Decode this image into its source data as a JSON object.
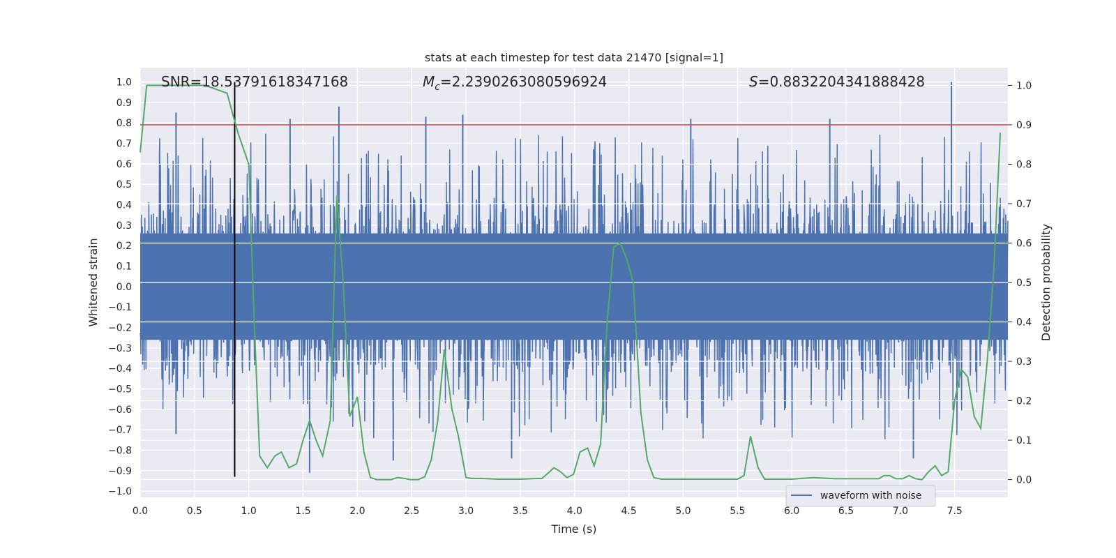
{
  "chart_data": {
    "type": "line",
    "title": "stats at each timestep for test data 21470 [signal=1]",
    "xlabel": "Time (s)",
    "ylabel": "Whitened strain",
    "ylabel_right": "Detection probability",
    "xlim": [
      0.0,
      7.99
    ],
    "ylim": [
      -1.03,
      1.07
    ],
    "ylim_right": [
      -0.045,
      1.045
    ],
    "x_ticks": [
      "0.0",
      "0.5",
      "1.0",
      "1.5",
      "2.0",
      "2.5",
      "3.0",
      "3.5",
      "4.0",
      "4.5",
      "5.0",
      "5.5",
      "6.0",
      "6.5",
      "7.0",
      "7.5"
    ],
    "y_ticks": [
      "1.0",
      "0.9",
      "0.8",
      "0.7",
      "0.6",
      "0.5",
      "0.4",
      "0.3",
      "0.2",
      "0.1",
      "0.0",
      "−0.1",
      "−0.2",
      "−0.3",
      "−0.4",
      "−0.5",
      "−0.6",
      "−0.7",
      "−0.8",
      "−0.9",
      "−1.0"
    ],
    "y_ticks_right": [
      "1.0",
      "0.9",
      "0.8",
      "0.7",
      "0.6",
      "0.5",
      "0.4",
      "0.3",
      "0.2",
      "0.1",
      "0.0"
    ],
    "grid": true,
    "legend": {
      "placement": "lower-right",
      "entries": [
        "waveform with noise"
      ]
    },
    "annotations": {
      "snr": "SNR=18.53791618347168",
      "mc_symbol": "M",
      "mc_subscript": "c",
      "mc_value": "=2.2390263080596924",
      "s_symbol": "S",
      "s_value": "=0.8832204341888428"
    },
    "threshold_probability": 0.9,
    "event_time": 0.87,
    "waveform_envelope": {
      "description_units": "strain",
      "typical_upper": 0.45,
      "typical_lower": -0.45,
      "notable_peaks": [
        {
          "x": 0.33,
          "y": 0.85
        },
        {
          "x": 1.38,
          "y": 0.82
        },
        {
          "x": 1.83,
          "y": 0.88
        },
        {
          "x": 2.63,
          "y": 0.83
        },
        {
          "x": 2.97,
          "y": 0.84
        },
        {
          "x": 5.07,
          "y": 0.82
        },
        {
          "x": 6.35,
          "y": 0.82
        },
        {
          "x": 7.47,
          "y": 1.0
        }
      ],
      "notable_troughs": [
        {
          "x": 0.87,
          "y": -0.92
        },
        {
          "x": 1.56,
          "y": -0.91
        },
        {
          "x": 0.33,
          "y": -0.72
        },
        {
          "x": 3.42,
          "y": -0.84
        },
        {
          "x": 2.33,
          "y": -0.85
        },
        {
          "x": 7.12,
          "y": -0.84
        }
      ]
    },
    "series": [
      {
        "name": "waveform with noise",
        "color": "#4c72b0",
        "style": "dense noisy waveform"
      },
      {
        "color": "#55a868",
        "axis": "right",
        "x": [
          0.0,
          0.06,
          0.1,
          0.2,
          0.3,
          0.4,
          0.5,
          0.6,
          0.7,
          0.8,
          0.85,
          0.9,
          0.95,
          1.0,
          1.05,
          1.1,
          1.17,
          1.24,
          1.3,
          1.37,
          1.44,
          1.5,
          1.56,
          1.62,
          1.68,
          1.75,
          1.81,
          1.87,
          1.93,
          2.0,
          2.06,
          2.12,
          2.18,
          2.25,
          2.31,
          2.37,
          2.43,
          2.49,
          2.56,
          2.62,
          2.68,
          2.74,
          2.8,
          2.87,
          2.93,
          3.0,
          3.05,
          3.12,
          3.2,
          3.3,
          3.4,
          3.5,
          3.6,
          3.7,
          3.75,
          3.81,
          3.87,
          3.93,
          3.99,
          4.05,
          4.12,
          4.18,
          4.24,
          4.3,
          4.36,
          4.42,
          4.48,
          4.54,
          4.61,
          4.67,
          4.73,
          4.8,
          4.87,
          5.0,
          5.2,
          5.4,
          5.5,
          5.56,
          5.62,
          5.69,
          5.75,
          5.86,
          6.0,
          6.2,
          6.4,
          6.6,
          6.8,
          6.85,
          6.9,
          6.96,
          7.02,
          7.08,
          7.14,
          7.2,
          7.26,
          7.32,
          7.38,
          7.44,
          7.5,
          7.56,
          7.62,
          7.68,
          7.74,
          7.8,
          7.86,
          7.92
        ],
        "y": [
          0.83,
          1.0,
          1.0,
          1.0,
          1.0,
          1.0,
          1.0,
          1.0,
          0.99,
          0.98,
          0.93,
          0.88,
          0.84,
          0.8,
          0.4,
          0.06,
          0.03,
          0.06,
          0.07,
          0.03,
          0.04,
          0.1,
          0.15,
          0.1,
          0.06,
          0.15,
          0.72,
          0.5,
          0.16,
          0.21,
          0.07,
          0.005,
          0.0,
          0.0,
          0.0,
          0.005,
          0.003,
          0.0,
          0.0,
          0.007,
          0.05,
          0.15,
          0.33,
          0.18,
          0.11,
          0.005,
          0.003,
          0.003,
          0.002,
          0.001,
          0.001,
          0.001,
          0.002,
          0.003,
          0.015,
          0.03,
          0.02,
          0.005,
          0.013,
          0.07,
          0.08,
          0.035,
          0.09,
          0.4,
          0.59,
          0.6,
          0.56,
          0.5,
          0.17,
          0.05,
          0.005,
          0.001,
          0.001,
          0.001,
          0.001,
          0.001,
          0.001,
          0.01,
          0.11,
          0.03,
          0.001,
          0.001,
          0.001,
          0.005,
          0.002,
          0.002,
          0.002,
          0.01,
          0.01,
          0.002,
          0.002,
          0.01,
          0.002,
          0.0,
          0.02,
          0.035,
          0.01,
          0.02,
          0.2,
          0.28,
          0.26,
          0.16,
          0.13,
          0.3,
          0.53,
          0.88
        ]
      }
    ]
  }
}
